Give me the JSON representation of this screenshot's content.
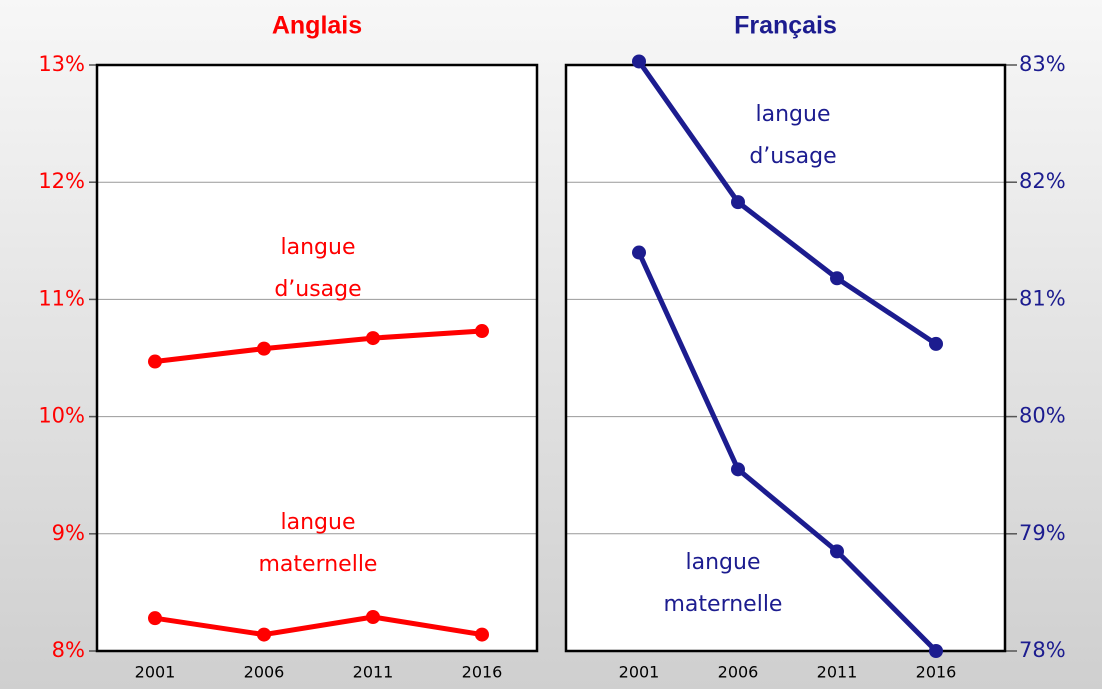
{
  "chart_data": [
    {
      "type": "line",
      "title": "Anglais",
      "color": "#ff0000",
      "axis_side": "left",
      "categories": [
        "2001",
        "2006",
        "2011",
        "2016"
      ],
      "ylim": [
        8,
        13
      ],
      "yticks": [
        {
          "value": 8,
          "label": "8%"
        },
        {
          "value": 9,
          "label": "9%"
        },
        {
          "value": 10,
          "label": "10%"
        },
        {
          "value": 11,
          "label": "11%"
        },
        {
          "value": 12,
          "label": "12%"
        },
        {
          "value": 13,
          "label": "13%"
        }
      ],
      "grid": true,
      "series": [
        {
          "name": [
            "langue",
            "d’usage"
          ],
          "color": "#ff0000",
          "values": [
            10.47,
            10.58,
            10.67,
            10.73
          ]
        },
        {
          "name": [
            "langue",
            "maternelle"
          ],
          "color": "#ff0000",
          "values": [
            8.28,
            8.14,
            8.29,
            8.14
          ]
        }
      ]
    },
    {
      "type": "line",
      "title": "Français",
      "color": "#1c1c8f",
      "axis_side": "right",
      "categories": [
        "2001",
        "2006",
        "2011",
        "2016"
      ],
      "ylim": [
        78,
        83
      ],
      "yticks": [
        {
          "value": 78,
          "label": "78%"
        },
        {
          "value": 79,
          "label": "79%"
        },
        {
          "value": 80,
          "label": "80%"
        },
        {
          "value": 81,
          "label": "81%"
        },
        {
          "value": 82,
          "label": "82%"
        },
        {
          "value": 83,
          "label": "83%"
        }
      ],
      "grid": true,
      "series": [
        {
          "name": [
            "langue",
            "d’usage"
          ],
          "color": "#1c1c8f",
          "values": [
            83.03,
            81.83,
            81.18,
            80.62
          ]
        },
        {
          "name": [
            "langue",
            "maternelle"
          ],
          "color": "#1c1c8f",
          "values": [
            81.4,
            79.55,
            78.85,
            78.0
          ]
        }
      ]
    }
  ]
}
